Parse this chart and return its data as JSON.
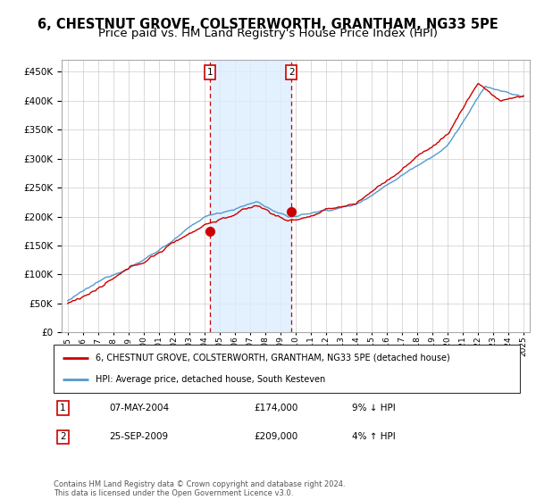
{
  "title": "6, CHESTNUT GROVE, COLSTERWORTH, GRANTHAM, NG33 5PE",
  "subtitle": "Price paid vs. HM Land Registry's House Price Index (HPI)",
  "title_fontsize": 10.5,
  "subtitle_fontsize": 9.5,
  "legend_line1": "6, CHESTNUT GROVE, COLSTERWORTH, GRANTHAM, NG33 5PE (detached house)",
  "legend_line2": "HPI: Average price, detached house, South Kesteven",
  "footnote": "Contains HM Land Registry data © Crown copyright and database right 2024.\nThis data is licensed under the Open Government Licence v3.0.",
  "transaction1_date": "07-MAY-2004",
  "transaction1_price": "£174,000",
  "transaction1_hpi": "9% ↓ HPI",
  "transaction2_date": "25-SEP-2009",
  "transaction2_price": "£209,000",
  "transaction2_hpi": "4% ↑ HPI",
  "red_color": "#cc0000",
  "blue_color": "#5599cc",
  "shade_color": "#ddeeff",
  "grid_color": "#cccccc",
  "bg_color": "#ffffff",
  "ylim": [
    0,
    470000
  ],
  "yticks": [
    0,
    50000,
    100000,
    150000,
    200000,
    250000,
    300000,
    350000,
    400000,
    450000
  ],
  "transaction1_x": 2004.35,
  "transaction1_y": 174000,
  "transaction2_x": 2009.73,
  "transaction2_y": 209000,
  "xmin": 1994.6,
  "xmax": 2025.4
}
